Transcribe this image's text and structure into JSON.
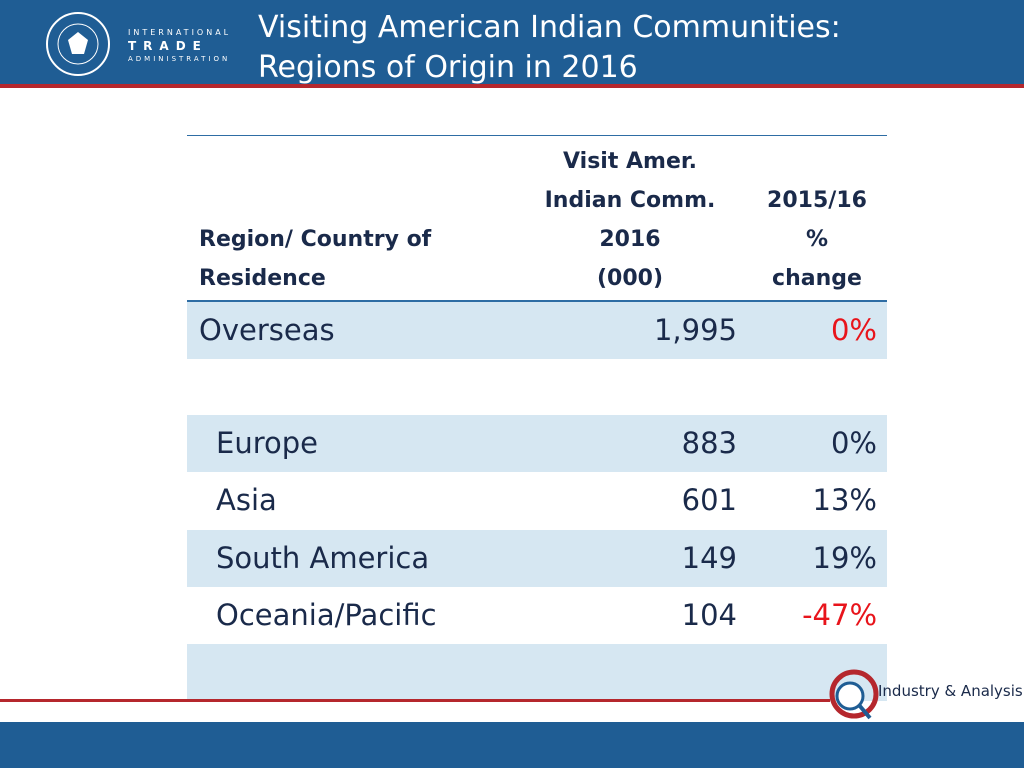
{
  "header": {
    "title_lines": [
      "Visiting American Indian Communities:",
      "Regions of Origin in 2016"
    ],
    "logo": {
      "line1": "INTERNATIONAL",
      "line2": "TRADE",
      "line3": "ADMINISTRATION"
    }
  },
  "table": {
    "columns": [
      [
        "Region/ Country  of",
        "Residence"
      ],
      [
        "Visit Amer.",
        "Indian Comm.",
        "2016",
        "(000)"
      ],
      [
        "2015/16",
        "%",
        "change"
      ]
    ],
    "rows": [
      {
        "label": "Overseas",
        "visits": "1,995",
        "change": "0%",
        "change_color": "#e8141b",
        "indent": false
      },
      {
        "label": "Europe",
        "visits": "883",
        "change": "0%",
        "change_color": "#1a2a4a",
        "indent": true
      },
      {
        "label": "Asia",
        "visits": "601",
        "change": "13%",
        "change_color": "#1a2a4a",
        "indent": true
      },
      {
        "label": "South America",
        "visits": "149",
        "change": "19%",
        "change_color": "#1a2a4a",
        "indent": true
      },
      {
        "label": "Oceania/Pacific",
        "visits": "104",
        "change": "-47%",
        "change_color": "#e8141b",
        "indent": true
      }
    ]
  },
  "footer": {
    "brand": "Industry & Analysis"
  }
}
